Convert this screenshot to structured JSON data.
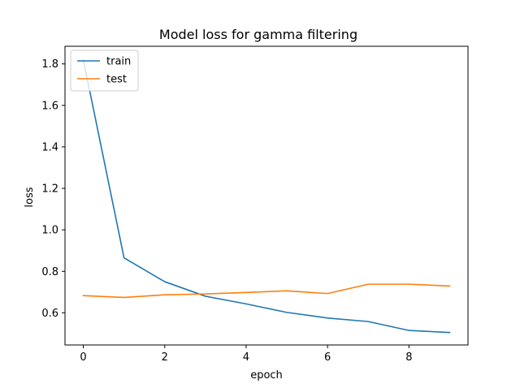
{
  "chart_data": {
    "type": "line",
    "title": "Model loss for  gamma filtering",
    "xlabel": "epoch",
    "ylabel": "loss",
    "x": [
      0,
      1,
      2,
      3,
      4,
      5,
      6,
      7,
      8,
      9
    ],
    "xlim": [
      -0.45,
      9.45
    ],
    "ylim": [
      0.445,
      1.885
    ],
    "xticks": [
      0,
      2,
      4,
      6,
      8
    ],
    "yticks": [
      0.6,
      0.8,
      1.0,
      1.2,
      1.4,
      1.6,
      1.8
    ],
    "xtick_labels": [
      "0",
      "2",
      "4",
      "6",
      "8"
    ],
    "ytick_labels": [
      "0.6",
      "0.8",
      "1.0",
      "1.2",
      "1.4",
      "1.6",
      "1.8"
    ],
    "grid": false,
    "legend_position": "top-left",
    "series": [
      {
        "name": "train",
        "color": "#1f77b4",
        "values": [
          1.82,
          0.865,
          0.75,
          0.68,
          0.643,
          0.602,
          0.575,
          0.558,
          0.515,
          0.505
        ]
      },
      {
        "name": "test",
        "color": "#ff7f0e",
        "values": [
          0.683,
          0.674,
          0.687,
          0.691,
          0.698,
          0.706,
          0.693,
          0.738,
          0.738,
          0.729
        ]
      }
    ]
  }
}
